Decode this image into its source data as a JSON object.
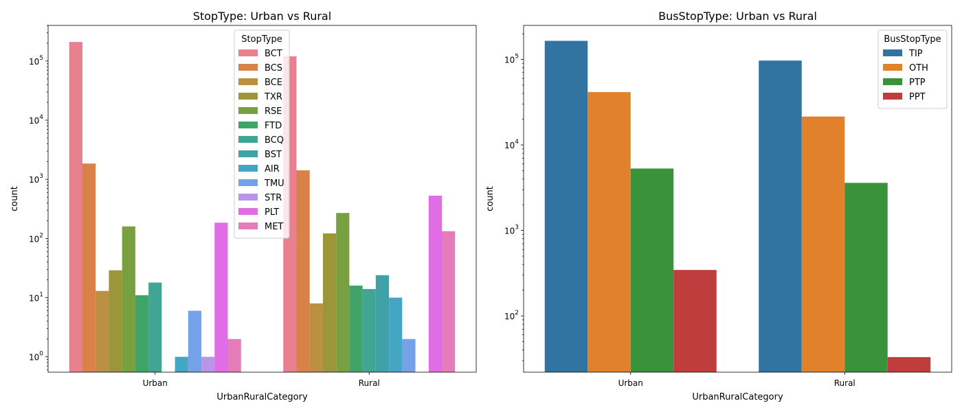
{
  "chart_data": [
    {
      "type": "bar",
      "title": "StopType: Urban vs Rural",
      "xlabel": "UrbanRuralCategory",
      "ylabel": "count",
      "yscale": "log",
      "ylim": [
        0.55,
        400000
      ],
      "categories": [
        "Urban",
        "Rural"
      ],
      "legend": {
        "title": "StopType",
        "placement": "top-center"
      },
      "series": [
        {
          "name": "BCT",
          "color": "#e8808f",
          "values": [
            210000,
            120000
          ]
        },
        {
          "name": "BCS",
          "color": "#d8824a",
          "values": [
            1850,
            1420
          ]
        },
        {
          "name": "BCE",
          "color": "#bb9040",
          "values": [
            13,
            8
          ]
        },
        {
          "name": "TXR",
          "color": "#9c963a",
          "values": [
            29,
            122
          ]
        },
        {
          "name": "RSE",
          "color": "#79a040",
          "values": [
            160,
            270
          ]
        },
        {
          "name": "FTD",
          "color": "#40a368",
          "values": [
            11,
            16
          ]
        },
        {
          "name": "BCQ",
          "color": "#40a592",
          "values": [
            18,
            14
          ]
        },
        {
          "name": "BST",
          "color": "#3fa2a8",
          "values": [
            null,
            24
          ]
        },
        {
          "name": "AIR",
          "color": "#45a6c4",
          "values": [
            1,
            10
          ]
        },
        {
          "name": "TMU",
          "color": "#74a1e8",
          "values": [
            6,
            2
          ]
        },
        {
          "name": "STR",
          "color": "#b994e8",
          "values": [
            1,
            null
          ]
        },
        {
          "name": "PLT",
          "color": "#e06ce6",
          "values": [
            185,
            530
          ]
        },
        {
          "name": "MET",
          "color": "#e47cba",
          "values": [
            2,
            133
          ]
        }
      ]
    },
    {
      "type": "bar",
      "title": "BusStopType: Urban vs Rural",
      "xlabel": "UrbanRuralCategory",
      "ylabel": "count",
      "yscale": "log",
      "ylim": [
        22,
        250000
      ],
      "categories": [
        "Urban",
        "Rural"
      ],
      "legend": {
        "title": "BusStopType",
        "placement": "top-right"
      },
      "series": [
        {
          "name": "TIP",
          "color": "#3274a1",
          "values": [
            165000,
            97000
          ]
        },
        {
          "name": "OTH",
          "color": "#e1812c",
          "values": [
            41500,
            21500
          ]
        },
        {
          "name": "PTP",
          "color": "#3a923a",
          "values": [
            5300,
            3600
          ]
        },
        {
          "name": "PPT",
          "color": "#c03d3e",
          "values": [
            345,
            33
          ]
        }
      ]
    }
  ]
}
